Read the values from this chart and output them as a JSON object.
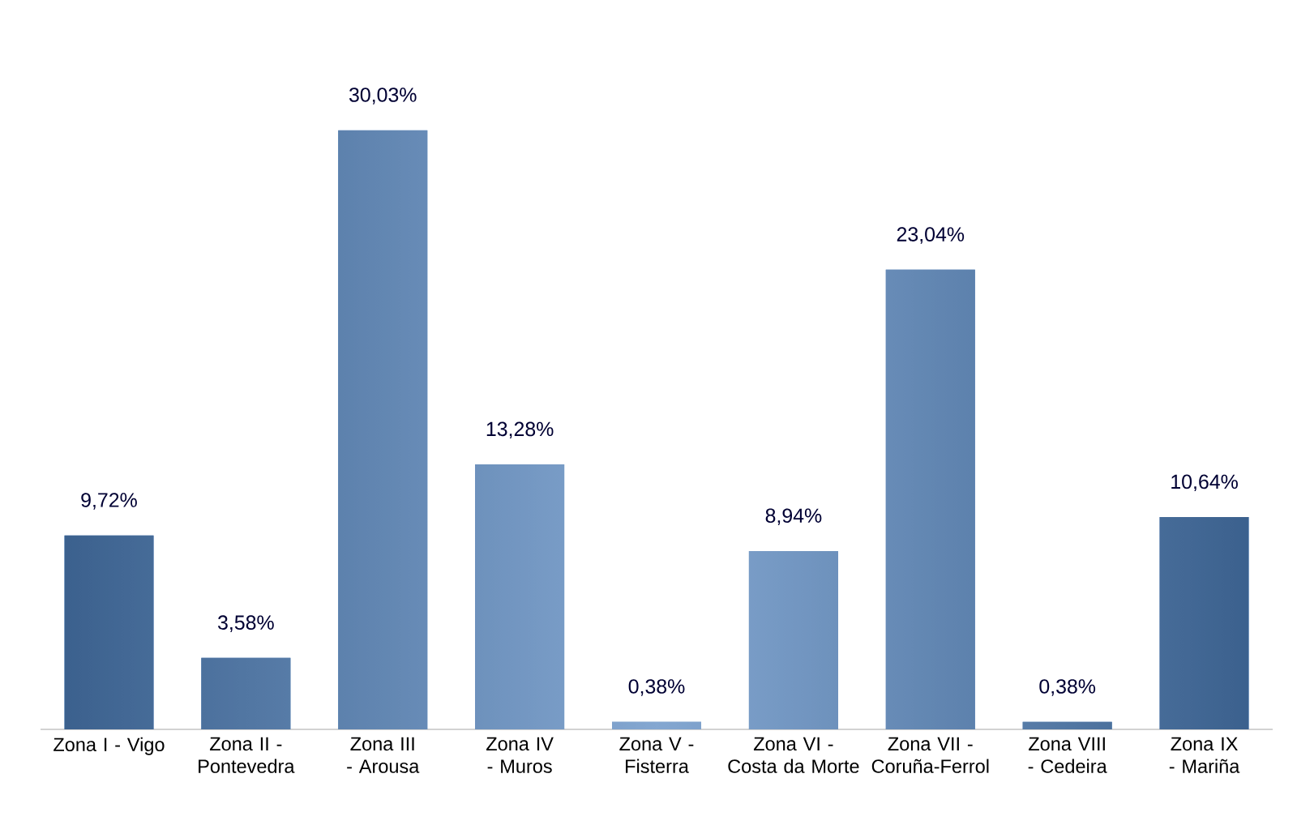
{
  "chart_data": {
    "type": "bar",
    "categories": [
      "Zona I - Vigo",
      "Zona II - Pontevedra",
      "Zona III - Arousa",
      "Zona IV - Muros",
      "Zona V - Fisterra",
      "Zona VI - Costa da Morte",
      "Zona VII - Coruña-Ferrol",
      "Zona VIII - Cedeira",
      "Zona IX - Mariña"
    ],
    "values": [
      9.72,
      3.58,
      30.03,
      13.28,
      0.38,
      8.94,
      23.04,
      0.38,
      10.64
    ],
    "value_labels": [
      "9,72%",
      "3,58%",
      "30,03%",
      "13,28%",
      "0,38%",
      "8,94%",
      "23,04%",
      "0,38%",
      "10,64%"
    ],
    "color": "#4f81bd",
    "tick_labels": "x"
  }
}
